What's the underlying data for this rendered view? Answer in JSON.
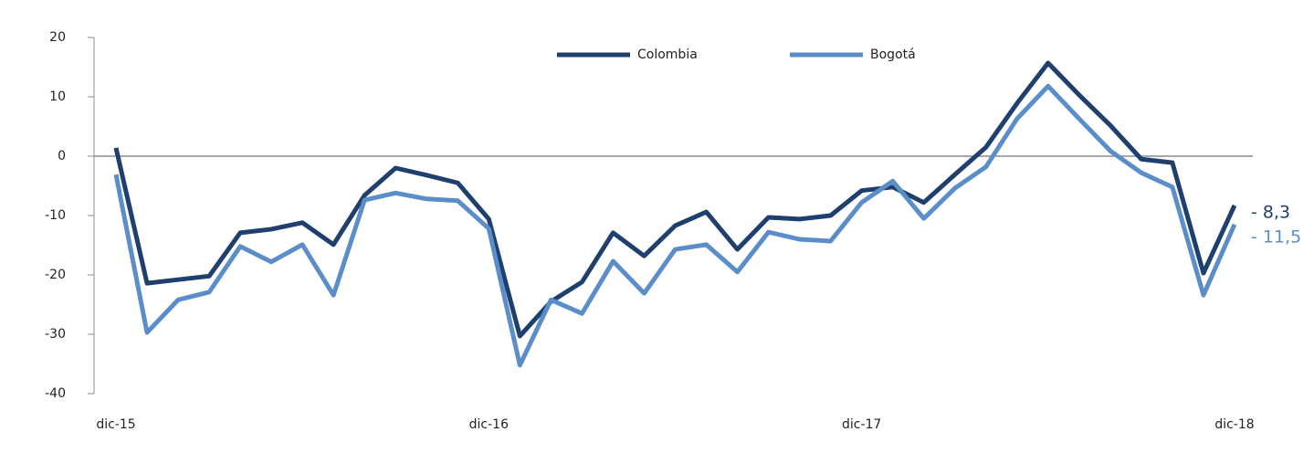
{
  "chart_data": {
    "type": "line",
    "categories": [
      "dic-15",
      null,
      null,
      null,
      null,
      null,
      null,
      null,
      null,
      null,
      null,
      null,
      "dic-16",
      null,
      null,
      null,
      null,
      null,
      null,
      null,
      null,
      null,
      null,
      null,
      "dic-17",
      null,
      null,
      null,
      null,
      null,
      null,
      null,
      null,
      null,
      null,
      null,
      "dic-18"
    ],
    "series": [
      {
        "name": "Colombia",
        "color": "#1f3f6e",
        "values": [
          1.4,
          -21.4,
          -20.8,
          -20.2,
          -12.9,
          -12.3,
          -11.2,
          -14.9,
          -6.6,
          -2.0,
          -3.2,
          -4.5,
          -10.6,
          -30.3,
          -24.5,
          -21.2,
          -12.9,
          -16.8,
          -11.7,
          -9.4,
          -15.7,
          -10.3,
          -10.6,
          -10.0,
          -5.8,
          -5.2,
          -7.8,
          -3.1,
          1.5,
          8.9,
          15.7,
          10.3,
          5.2,
          -0.5,
          -1.1,
          -19.7,
          -8.3
        ],
        "value_labels": [
          null,
          null,
          null,
          null,
          null,
          null,
          null,
          null,
          null,
          null,
          null,
          null,
          null,
          null,
          null,
          null,
          null,
          null,
          null,
          null,
          null,
          null,
          null,
          null,
          null,
          null,
          null,
          null,
          null,
          null,
          null,
          null,
          null,
          null,
          null,
          null,
          "- 8,3"
        ]
      },
      {
        "name": "Bogotá",
        "color": "#5b8ec9",
        "values": [
          -3.1,
          -29.7,
          -24.2,
          -22.9,
          -15.2,
          -17.8,
          -14.9,
          -23.4,
          -7.4,
          -6.2,
          -7.2,
          -7.5,
          -12.2,
          -35.2,
          -24.2,
          -26.5,
          -17.7,
          -23.1,
          -15.7,
          -14.9,
          -19.5,
          -12.8,
          -14.0,
          -14.3,
          -7.8,
          -4.2,
          -10.5,
          -5.4,
          -1.8,
          6.3,
          11.8,
          6.3,
          0.9,
          -2.8,
          -5.2,
          -23.4,
          -11.5
        ],
        "value_labels": [
          null,
          null,
          null,
          null,
          null,
          null,
          null,
          null,
          null,
          null,
          null,
          null,
          null,
          null,
          null,
          null,
          null,
          null,
          null,
          null,
          null,
          null,
          null,
          null,
          null,
          null,
          null,
          null,
          null,
          null,
          null,
          null,
          null,
          null,
          null,
          null,
          "- 11,5"
        ]
      }
    ],
    "ylim": [
      -40,
      20
    ],
    "yticks": [
      -40,
      -30,
      -20,
      -10,
      0,
      10,
      20
    ],
    "legend": "top"
  }
}
